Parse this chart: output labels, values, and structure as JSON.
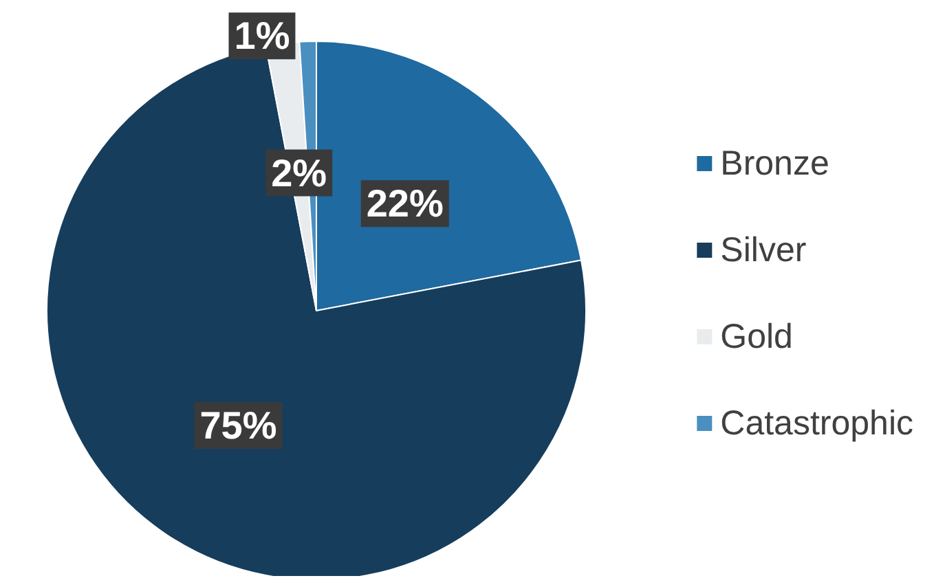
{
  "chart_data": {
    "type": "pie",
    "categories": [
      "Bronze",
      "Silver",
      "Gold",
      "Catastrophic"
    ],
    "values": [
      22,
      75,
      2,
      1
    ],
    "colors": [
      "#1f6aa0",
      "#163d5c",
      "#e8ecef",
      "#4a8fc0"
    ],
    "value_labels": [
      "22%",
      "75%",
      "2%",
      "1%"
    ],
    "legend": "right"
  }
}
